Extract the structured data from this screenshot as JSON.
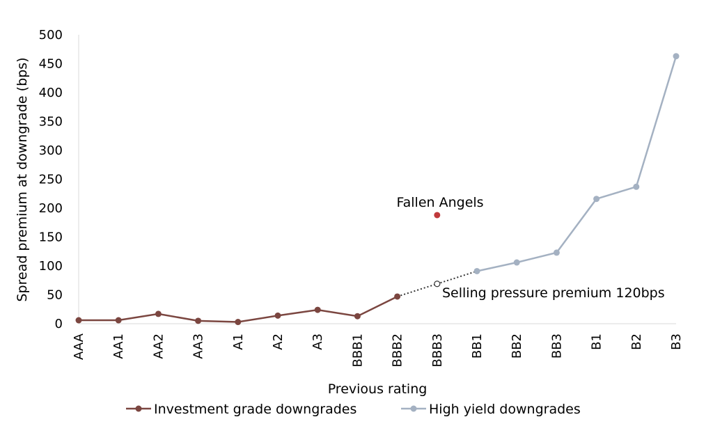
{
  "chart_data": {
    "type": "line",
    "title": "",
    "xlabel": "Previous rating",
    "ylabel": "Spread premium at downgrade (bps)",
    "ylim": [
      0,
      500
    ],
    "y_ticks": [
      0,
      50,
      100,
      150,
      200,
      250,
      300,
      350,
      400,
      450,
      500
    ],
    "categories": [
      "AAA",
      "AA1",
      "AA2",
      "AA3",
      "A1",
      "A2",
      "A3",
      "BBB1",
      "BBB2",
      "BBB3",
      "BB1",
      "BB2",
      "BB3",
      "B1",
      "B2",
      "B3"
    ],
    "grid": false,
    "legend_position": "bottom",
    "series": [
      {
        "name": "Investment grade downgrades",
        "color": "#7b4640",
        "points": [
          {
            "x": "AAA",
            "y": 6
          },
          {
            "x": "AA1",
            "y": 6
          },
          {
            "x": "AA2",
            "y": 17
          },
          {
            "x": "AA3",
            "y": 5
          },
          {
            "x": "A1",
            "y": 3
          },
          {
            "x": "A2",
            "y": 14
          },
          {
            "x": "A3",
            "y": 24
          },
          {
            "x": "BBB1",
            "y": 13
          },
          {
            "x": "BBB2",
            "y": 47
          }
        ]
      },
      {
        "name": "High yield downgrades",
        "color": "#a4b1c2",
        "points": [
          {
            "x": "BB1",
            "y": 91
          },
          {
            "x": "BB2",
            "y": 106
          },
          {
            "x": "BB3",
            "y": 123
          },
          {
            "x": "B1",
            "y": 216
          },
          {
            "x": "B2",
            "y": 237
          },
          {
            "x": "B3",
            "y": 463
          }
        ]
      }
    ],
    "fallen_angels": {
      "label": "Fallen Angels",
      "x": "BBB3",
      "y": 188,
      "color": "#c0393b"
    },
    "interpolated_point": {
      "x": "BBB3",
      "y": 69
    },
    "selling_pressure_label": "Selling pressure premium 120bps"
  }
}
